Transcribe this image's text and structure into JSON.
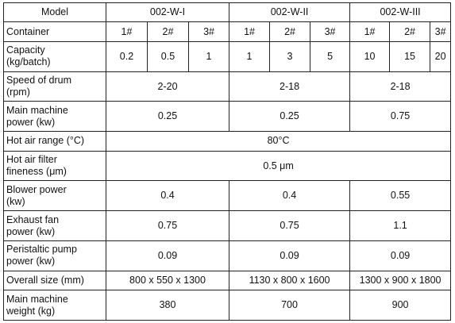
{
  "header": {
    "label": "Model",
    "models": [
      "002-W-I",
      "002-W-II",
      "002-W-III"
    ]
  },
  "container": {
    "label": "Container",
    "values": [
      "1#",
      "2#",
      "3#",
      "1#",
      "2#",
      "3#",
      "1#",
      "2#",
      "3#"
    ]
  },
  "capacity": {
    "label": "Capacity\n(kg/batch)",
    "values": [
      "0.2",
      "0.5",
      "1",
      "1",
      "3",
      "5",
      "10",
      "15",
      "20"
    ]
  },
  "speed": {
    "label": "Speed of drum\n(rpm)",
    "values": [
      "2-20",
      "2-18",
      "2-18"
    ]
  },
  "main_power": {
    "label": "Main machine\npower (kw)",
    "values": [
      "0.25",
      "0.25",
      "0.75"
    ]
  },
  "hot_air": {
    "label": "Hot air range (°C)",
    "value": "80°C"
  },
  "filter": {
    "label": "Hot air filter\nfineness (μm)",
    "value": "0.5 μm"
  },
  "blower": {
    "label": "Blower power\n(kw)",
    "values": [
      "0.4",
      "0.4",
      "0.55"
    ]
  },
  "exhaust": {
    "label": "Exhaust fan\npower (kw)",
    "values": [
      "0.75",
      "0.75",
      "1.1"
    ]
  },
  "pump": {
    "label": "Peristaltic pump\npower (kw)",
    "values": [
      "0.09",
      "0.09",
      "0.09"
    ]
  },
  "size": {
    "label": "Overall size (mm)",
    "values": [
      "800 x 550 x 1300",
      "1130 x 800 x 1600",
      "1300 x 900 x 1800"
    ]
  },
  "weight": {
    "label": "Main machine\nweight (kg)",
    "values": [
      "380",
      "700",
      "900"
    ]
  }
}
